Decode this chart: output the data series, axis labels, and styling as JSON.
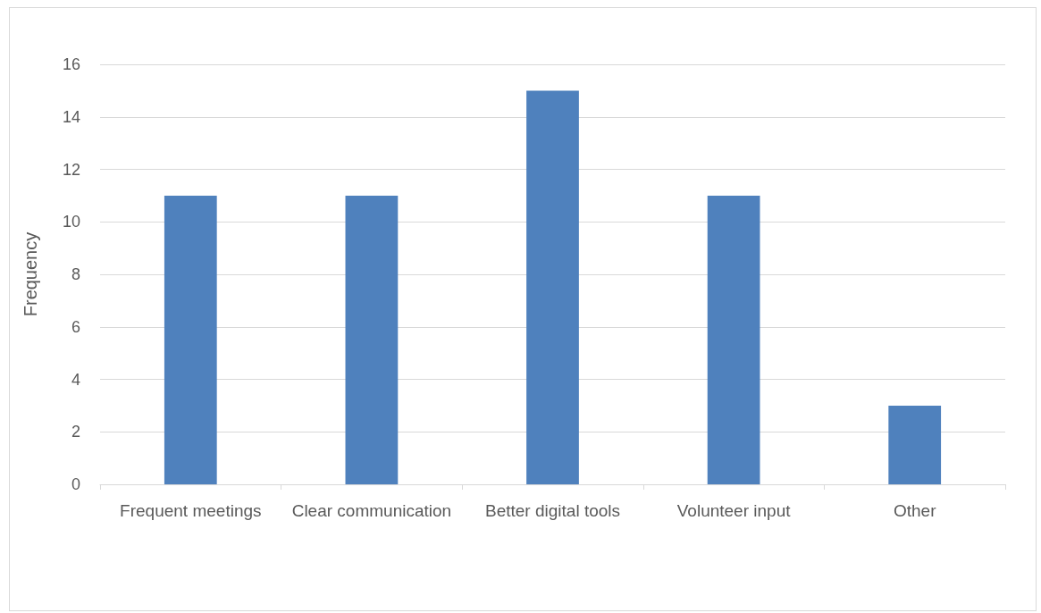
{
  "chart_data": {
    "type": "bar",
    "ylabel": "Frequency",
    "categories": [
      "Frequent meetings",
      "Clear communication",
      "Better digital tools",
      "Volunteer input",
      "Other"
    ],
    "values": [
      11,
      11,
      15,
      11,
      3
    ],
    "color": "#4f81bd",
    "ylim": [
      0,
      16
    ],
    "yticks": [
      0,
      2,
      4,
      6,
      8,
      10,
      12,
      14,
      16
    ],
    "grid": "y"
  }
}
